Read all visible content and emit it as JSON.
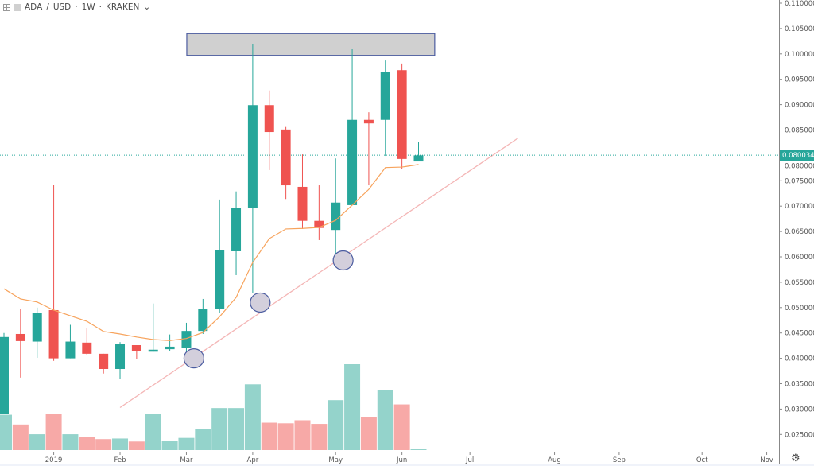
{
  "header": {
    "symbol": "ADA",
    "quote": "USD",
    "interval": "1W",
    "exchange": "KRAKEN",
    "separator": " / ",
    "dot": " · ",
    "chevron": "⌄"
  },
  "colors": {
    "up": "#26a69a",
    "down": "#ef5350",
    "vol_up": "#94d3cb",
    "vol_down": "#f7a9a7",
    "ma": "#f7a35c",
    "trend": "#f4b6b6",
    "price_line": "#26a69a",
    "zone_fill": "#d0d0d0",
    "zone_border": "#4b5ca0",
    "ellipse_fill": "#d3cfdc",
    "ellipse_border": "#4b5ca0"
  },
  "chart_data": {
    "type": "candlestick",
    "title": "ADA / USD · 1W · KRAKEN",
    "ylim": [
      0.0235,
      0.1106
    ],
    "y_ticks": [
      "0.110000",
      "0.105000",
      "0.100000",
      "0.095000",
      "0.090000",
      "0.085000",
      "0.080000",
      "0.075000",
      "0.070000",
      "0.065000",
      "0.060000",
      "0.055000",
      "0.050000",
      "0.045000",
      "0.040000",
      "0.035000",
      "0.030000",
      "0.025000"
    ],
    "x_ticks": [
      {
        "label": "2019",
        "index": 3
      },
      {
        "label": "Feb",
        "index": 7
      },
      {
        "label": "Mar",
        "index": 11
      },
      {
        "label": "Apr",
        "index": 15
      },
      {
        "label": "May",
        "index": 20
      },
      {
        "label": "Jun",
        "index": 24
      },
      {
        "label": "Jul",
        "index": 28.1
      },
      {
        "label": "Aug",
        "index": 33.2
      },
      {
        "label": "Sep",
        "index": 37.1
      },
      {
        "label": "Oct",
        "index": 42.1
      },
      {
        "label": "Nov",
        "index": 46
      }
    ],
    "x_range": [
      0,
      47
    ],
    "current_price": "0.080034",
    "candles": [
      {
        "o": 0.0291,
        "h": 0.045,
        "l": 0.029,
        "c": 0.0442
      },
      {
        "o": 0.0448,
        "h": 0.0497,
        "l": 0.0362,
        "c": 0.0434
      },
      {
        "o": 0.0433,
        "h": 0.05,
        "l": 0.0401,
        "c": 0.0489
      },
      {
        "o": 0.0495,
        "h": 0.0741,
        "l": 0.0395,
        "c": 0.04
      },
      {
        "o": 0.04,
        "h": 0.0466,
        "l": 0.04,
        "c": 0.0433
      },
      {
        "o": 0.0431,
        "h": 0.046,
        "l": 0.0406,
        "c": 0.0409
      },
      {
        "o": 0.0409,
        "h": 0.0409,
        "l": 0.037,
        "c": 0.0379
      },
      {
        "o": 0.0379,
        "h": 0.0432,
        "l": 0.0359,
        "c": 0.0429
      },
      {
        "o": 0.0426,
        "h": 0.0426,
        "l": 0.0398,
        "c": 0.0414
      },
      {
        "o": 0.0413,
        "h": 0.0508,
        "l": 0.0413,
        "c": 0.0417
      },
      {
        "o": 0.0418,
        "h": 0.0447,
        "l": 0.0415,
        "c": 0.0423
      },
      {
        "o": 0.042,
        "h": 0.047,
        "l": 0.0393,
        "c": 0.0454
      },
      {
        "o": 0.0454,
        "h": 0.0517,
        "l": 0.0448,
        "c": 0.0498
      },
      {
        "o": 0.0498,
        "h": 0.0713,
        "l": 0.049,
        "c": 0.0614
      },
      {
        "o": 0.0611,
        "h": 0.0729,
        "l": 0.0564,
        "c": 0.0697
      },
      {
        "o": 0.0696,
        "h": 0.102,
        "l": 0.0528,
        "c": 0.0899
      },
      {
        "o": 0.0899,
        "h": 0.0928,
        "l": 0.0771,
        "c": 0.0846
      },
      {
        "o": 0.0851,
        "h": 0.0856,
        "l": 0.0714,
        "c": 0.0741
      },
      {
        "o": 0.0738,
        "h": 0.0802,
        "l": 0.0655,
        "c": 0.0671
      },
      {
        "o": 0.0671,
        "h": 0.0741,
        "l": 0.0633,
        "c": 0.0657
      },
      {
        "o": 0.0653,
        "h": 0.0794,
        "l": 0.0594,
        "c": 0.0707
      },
      {
        "o": 0.0702,
        "h": 0.1009,
        "l": 0.0702,
        "c": 0.087
      },
      {
        "o": 0.087,
        "h": 0.0885,
        "l": 0.0741,
        "c": 0.0863
      },
      {
        "o": 0.087,
        "h": 0.0987,
        "l": 0.0799,
        "c": 0.0965
      },
      {
        "o": 0.0968,
        "h": 0.0981,
        "l": 0.0774,
        "c": 0.0793
      },
      {
        "o": 0.0788,
        "h": 0.0826,
        "l": 0.0788,
        "c": 0.08
      }
    ],
    "volume": [
      58,
      42,
      26,
      59,
      26,
      22,
      18,
      19,
      14,
      60,
      15,
      20,
      35,
      69,
      69,
      108,
      45,
      44,
      49,
      43,
      82,
      141,
      54,
      98,
      75,
      2
    ],
    "ma": [
      0.0537,
      0.0517,
      0.0511,
      0.0495,
      0.0484,
      0.0473,
      0.0453,
      0.0448,
      0.0442,
      0.0437,
      0.0435,
      0.0439,
      0.0451,
      0.0482,
      0.052,
      0.0589,
      0.0636,
      0.0655,
      0.0656,
      0.0658,
      0.0672,
      0.0702,
      0.0733,
      0.0776,
      0.0777,
      0.0782
    ],
    "annotations": {
      "resistance_zone": {
        "from_index": 11.5,
        "to_index": 25.5,
        "price_top": 0.104,
        "price_bottom": 0.0997
      },
      "trendline": {
        "start": {
          "index": 7,
          "price": 0.0303
        },
        "end": {
          "index": 31,
          "price": 0.0834
        }
      },
      "ellipses": [
        {
          "index": 11.5,
          "price": 0.04
        },
        {
          "index": 15.5,
          "price": 0.051
        },
        {
          "index": 20.5,
          "price": 0.0593
        }
      ]
    }
  }
}
